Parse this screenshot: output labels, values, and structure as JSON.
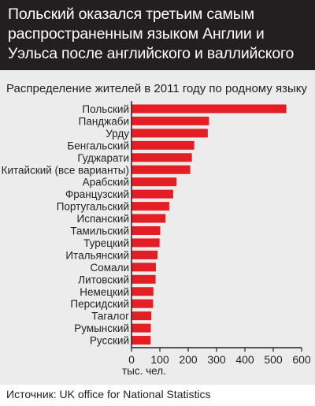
{
  "header": {
    "title": "Польский оказался третьим самым распространенным языком Англии и Уэльса после английского и валлийского"
  },
  "footer": {
    "source": "Источник: UK office for National Statistics"
  },
  "colors": {
    "bar": "#e31e24",
    "header_bg": "#231f20",
    "panel_bg": "#ececec"
  },
  "chart_data": {
    "type": "bar",
    "orientation": "horizontal",
    "title": "Распределение жителей в 2011 году по родному языку",
    "xlabel": "тыс. чел.",
    "ylabel": "",
    "xlim": [
      0,
      600
    ],
    "xticks": [
      "0",
      "100",
      "200",
      "300",
      "400",
      "500",
      "600"
    ],
    "grid": false,
    "categories": [
      "Польский",
      "Панджаби",
      "Урду",
      "Бенгальский",
      "Гуджарати",
      "Китайский (все варианты)",
      "Арабский",
      "Французский",
      "Португальский",
      "Испанский",
      "Тамильский",
      "Турецкий",
      "Итальянский",
      "Сомали",
      "Литовский",
      "Немецкий",
      "Персидский",
      "Тагалог",
      "Румынский",
      "Русский"
    ],
    "values": [
      546,
      273,
      269,
      221,
      213,
      207,
      159,
      147,
      133,
      120,
      101,
      99,
      92,
      86,
      85,
      77,
      76,
      70,
      68,
      67
    ]
  }
}
